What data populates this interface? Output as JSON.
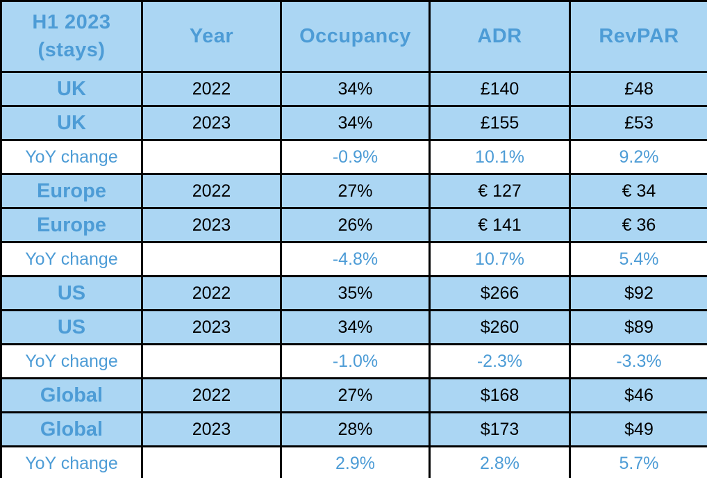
{
  "table": {
    "header": {
      "title_line1": "H1 2023",
      "title_line2": "(stays)",
      "columns": [
        "Year",
        "Occupancy",
        "ADR",
        "RevPAR"
      ]
    },
    "rows": [
      {
        "type": "data",
        "region": "UK",
        "year": "2022",
        "occupancy": "34%",
        "adr": "£140",
        "revpar": "£48"
      },
      {
        "type": "data",
        "region": "UK",
        "year": "2023",
        "occupancy": "34%",
        "adr": "£155",
        "revpar": "£53"
      },
      {
        "type": "yoy",
        "region": "YoY change",
        "year": "",
        "occupancy": "-0.9%",
        "adr": "10.1%",
        "revpar": "9.2%"
      },
      {
        "type": "data",
        "region": "Europe",
        "year": "2022",
        "occupancy": "27%",
        "adr": "€ 127",
        "revpar": "€ 34"
      },
      {
        "type": "data",
        "region": "Europe",
        "year": "2023",
        "occupancy": "26%",
        "adr": "€ 141",
        "revpar": "€ 36"
      },
      {
        "type": "yoy",
        "region": "YoY change",
        "year": "",
        "occupancy": "-4.8%",
        "adr": "10.7%",
        "revpar": "5.4%"
      },
      {
        "type": "data",
        "region": "US",
        "year": "2022",
        "occupancy": "35%",
        "adr": "$266",
        "revpar": "$92"
      },
      {
        "type": "data",
        "region": "US",
        "year": "2023",
        "occupancy": "34%",
        "adr": "$260",
        "revpar": "$89"
      },
      {
        "type": "yoy",
        "region": "YoY change",
        "year": "",
        "occupancy": "-1.0%",
        "adr": "-2.3%",
        "revpar": "-3.3%"
      },
      {
        "type": "data",
        "region": "Global",
        "year": "2022",
        "occupancy": "27%",
        "adr": "$168",
        "revpar": "$46"
      },
      {
        "type": "data",
        "region": "Global",
        "year": "2023",
        "occupancy": "28%",
        "adr": "$173",
        "revpar": "$49"
      },
      {
        "type": "yoy",
        "region": "YoY change",
        "year": "",
        "occupancy": "2.9%",
        "adr": "2.8%",
        "revpar": "5.7%"
      }
    ]
  },
  "colors": {
    "cell_blue": "#abd6f3",
    "text_blue": "#4d9cd6",
    "yoy_background": "#ffffff",
    "value_text": "#000000",
    "border": "#000000"
  }
}
